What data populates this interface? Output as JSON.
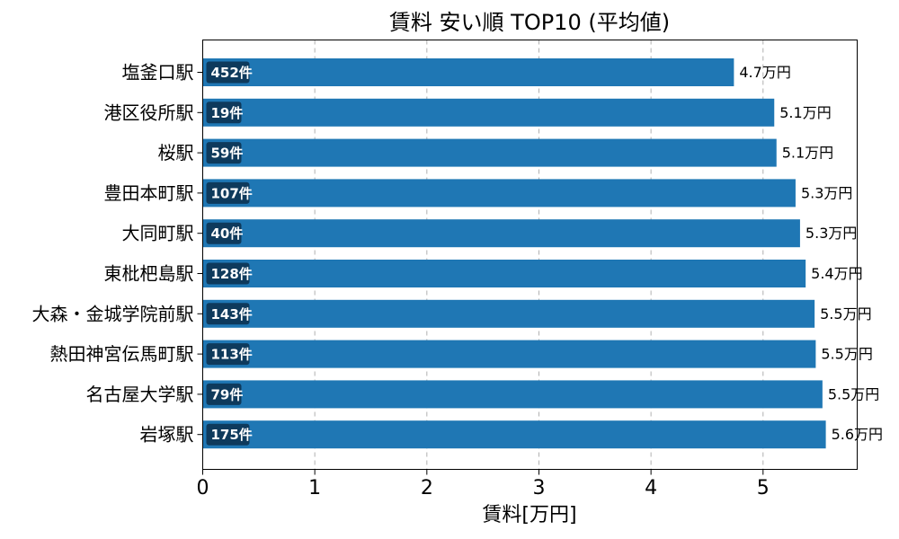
{
  "chart_data": {
    "type": "bar",
    "orientation": "horizontal",
    "title": "賃料 安い順 TOP10 (平均値)",
    "xlabel": "賃料[万円]",
    "ylabel": "",
    "xlim": [
      0,
      5.84
    ],
    "xticks": [
      0,
      1,
      2,
      3,
      4,
      5
    ],
    "grid": "vertical dashed",
    "bar_color": "#1f77b4",
    "badge_color": "#0e3a5c",
    "categories": [
      "塩釜口駅",
      "港区役所駅",
      "桜駅",
      "豊田本町駅",
      "大同町駅",
      "東枇杷島駅",
      "大森・金城学院前駅",
      "熱田神宮伝馬町駅",
      "名古屋大学駅",
      "岩塚駅"
    ],
    "values": [
      4.74,
      5.1,
      5.12,
      5.29,
      5.33,
      5.38,
      5.46,
      5.47,
      5.53,
      5.56
    ],
    "value_labels": [
      "4.7万円",
      "5.1万円",
      "5.1万円",
      "5.3万円",
      "5.3万円",
      "5.4万円",
      "5.5万円",
      "5.5万円",
      "5.5万円",
      "5.6万円"
    ],
    "counts": [
      "452件",
      "19件",
      "59件",
      "107件",
      "40件",
      "128件",
      "143件",
      "113件",
      "79件",
      "175件"
    ]
  }
}
